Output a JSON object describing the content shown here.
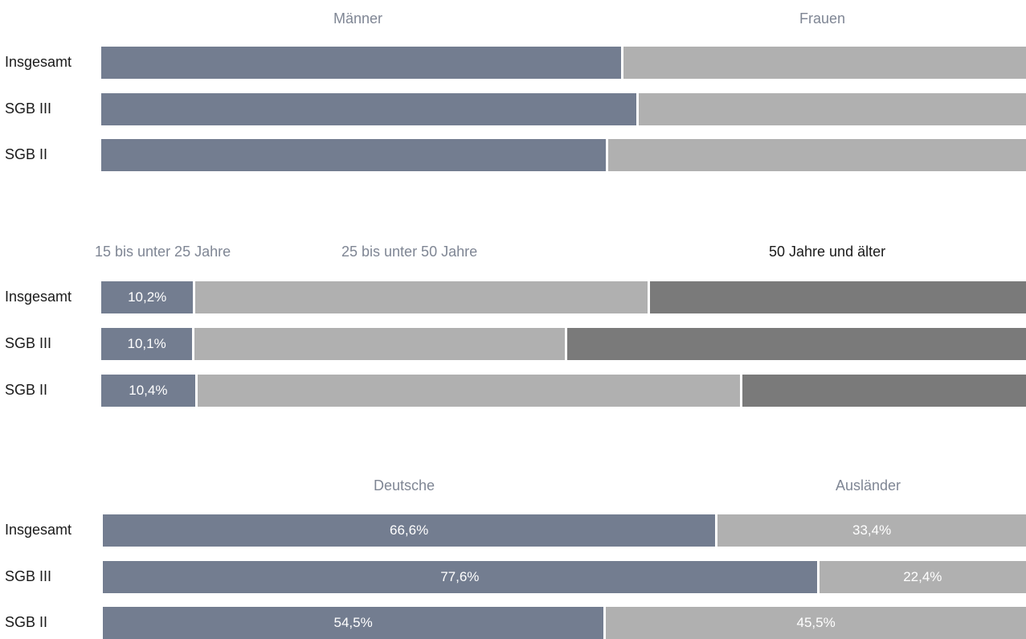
{
  "colors": {
    "slate": "#737d90",
    "light_gray": "#b0b0b0",
    "dark_gray": "#7a7a7a",
    "legend_muted": "#7f8694",
    "legend_dark": "#1a1a1a"
  },
  "chart_data": [
    {
      "type": "bar",
      "orientation": "horizontal",
      "stacked": "100%",
      "categories": [
        "Insgesamt",
        "SGB III",
        "SGB II"
      ],
      "series": [
        {
          "name": "Männer",
          "values": [
            56.5,
            58.1,
            54.8
          ],
          "labels": [
            "",
            "",
            ""
          ]
        },
        {
          "name": "Frauen",
          "values": [
            43.5,
            41.9,
            45.2
          ],
          "labels": [
            "",
            "",
            ""
          ]
        }
      ],
      "legend_placement": "top",
      "grid": false
    },
    {
      "type": "bar",
      "orientation": "horizontal",
      "stacked": "100%",
      "categories": [
        "Insgesamt",
        "SGB III",
        "SGB II"
      ],
      "series": [
        {
          "name": "15 bis unter 25 Jahre",
          "values": [
            10.2,
            10.1,
            10.4
          ],
          "labels": [
            "10,2%",
            "10,1%",
            "10,4%"
          ]
        },
        {
          "name": "25 bis unter 50 Jahre",
          "values": [
            49.1,
            40.3,
            58.9
          ],
          "labels": [
            "",
            "",
            ""
          ]
        },
        {
          "name": "50 Jahre und älter",
          "values": [
            40.7,
            49.6,
            30.7
          ],
          "labels": [
            "",
            "",
            ""
          ]
        }
      ],
      "legend_placement": "top",
      "grid": false
    },
    {
      "type": "bar",
      "orientation": "horizontal",
      "stacked": "100%",
      "categories": [
        "Insgesamt",
        "SGB III",
        "SGB II"
      ],
      "series": [
        {
          "name": "Deutsche",
          "values": [
            66.6,
            77.6,
            54.5
          ],
          "labels": [
            "66,6%",
            "77,6%",
            "54,5%"
          ]
        },
        {
          "name": "Ausländer",
          "values": [
            33.4,
            22.4,
            45.5
          ],
          "labels": [
            "33,4%",
            "22,4%",
            "45,5%"
          ]
        }
      ],
      "legend_placement": "top",
      "grid": false
    }
  ]
}
